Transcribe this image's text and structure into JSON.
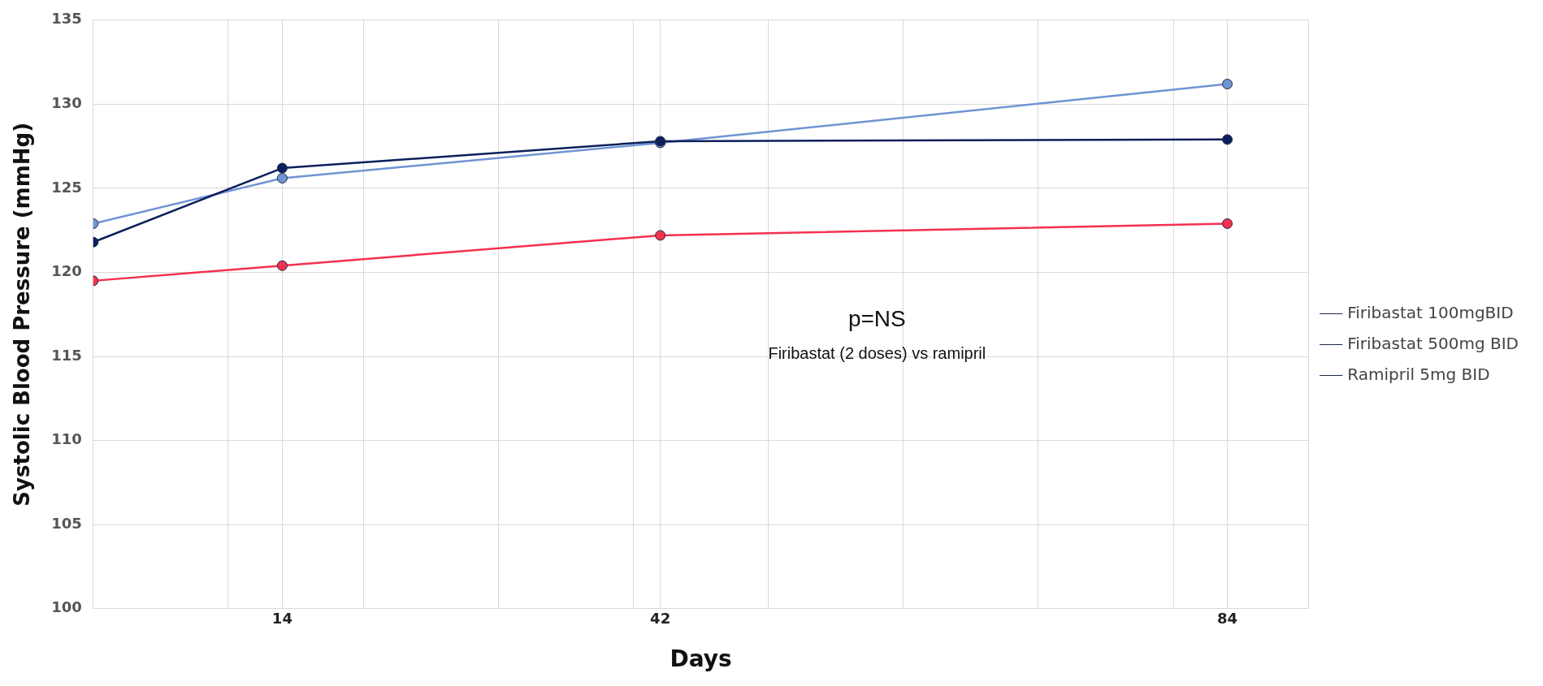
{
  "chart_data": {
    "type": "line",
    "xlabel": "Days",
    "ylabel": "Systolic Blood Pressure (mmHg)",
    "x": [
      0,
      14,
      42,
      84
    ],
    "series": [
      {
        "name": "Firibastat 100mgBID",
        "color": "#7094d4",
        "values": [
          122.9,
          125.6,
          127.7,
          131.2
        ]
      },
      {
        "name": "Firibastat 500mg BID",
        "color": "#0d1f5c",
        "values": [
          121.8,
          126.2,
          127.8,
          127.9
        ]
      },
      {
        "name": "Ramipril 5mg BID",
        "color": "#f5304f",
        "values": [
          119.5,
          120.4,
          122.2,
          122.9
        ]
      }
    ],
    "xlim": [
      0,
      90
    ],
    "xticks": [
      {
        "value": 10,
        "label": null
      },
      14,
      {
        "value": 20,
        "label": null
      },
      {
        "value": 30,
        "label": null
      },
      {
        "value": 40,
        "label": null
      },
      42,
      {
        "value": 50,
        "label": null
      },
      {
        "value": 60,
        "label": null
      },
      {
        "value": 70,
        "label": null
      },
      {
        "value": 80,
        "label": null
      },
      84,
      {
        "value": 90,
        "label": null
      }
    ],
    "ylim": [
      100,
      135
    ],
    "yticks": [
      100,
      105,
      110,
      115,
      120,
      125,
      130,
      135
    ],
    "annotations": [
      "p=NS",
      "Firibastat (2 doses) vs ramipril"
    ],
    "grid": true,
    "legend": "right",
    "marker": "circle",
    "line_style": "solid"
  }
}
